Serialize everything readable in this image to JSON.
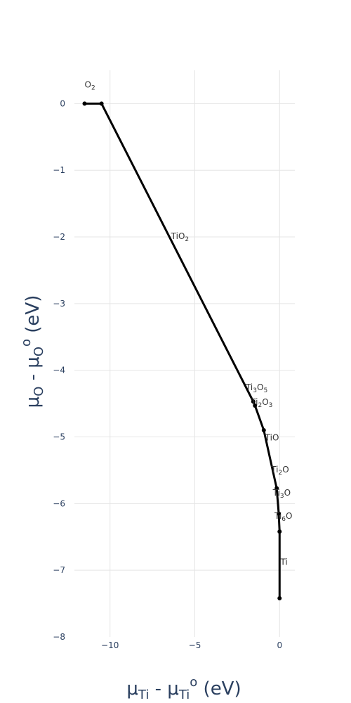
{
  "chart_data": {
    "type": "line",
    "xlabel": {
      "base": "μ",
      "base_sub": "Ti",
      "mid": " - μ",
      "mid_sub": "Ti",
      "sup": "o",
      "end": " (eV)"
    },
    "ylabel": {
      "base": "μ",
      "base_sub": "O",
      "mid": " - μ",
      "mid_sub": "O",
      "sup": "o",
      "end": " (eV)"
    },
    "xlim": [
      -12.1,
      0.9
    ],
    "ylim": [
      -8,
      0.5
    ],
    "x_ticks": [
      -10,
      -5,
      0
    ],
    "x_tick_labels": [
      "−10",
      "−5",
      "0"
    ],
    "y_ticks": [
      0,
      -1,
      -2,
      -3,
      -4,
      -5,
      -6,
      -7,
      -8
    ],
    "y_tick_labels": [
      "0",
      "−1",
      "−2",
      "−3",
      "−4",
      "−5",
      "−6",
      "−7",
      "−8"
    ],
    "grid": true,
    "series": [
      {
        "x": [
          -11.5,
          -10.5,
          -1.55,
          -1.45,
          -0.93,
          -0.17,
          -0.05,
          0.0,
          0.0
        ],
        "y": [
          0.0,
          0.0,
          -4.47,
          -4.53,
          -4.9,
          -5.77,
          -6.15,
          -6.42,
          -7.42
        ]
      }
    ],
    "phase_labels": [
      {
        "base": "O",
        "sub": "2",
        "x": -11.5,
        "y": 0.24
      },
      {
        "base": "TiO",
        "sub": "2",
        "x": -6.4,
        "y": -2.03
      },
      {
        "base": "Ti",
        "sub": "3",
        "rest": "O",
        "sub2": "5",
        "x": -2.0,
        "y": -4.3
      },
      {
        "base": "Ti",
        "sub": "2",
        "rest": "O",
        "sub2": "3",
        "x": -1.7,
        "y": -4.52
      },
      {
        "base": "TiO",
        "x": -0.85,
        "y": -5.05
      },
      {
        "base": "Ti",
        "sub": "2",
        "rest": "O",
        "x": -0.5,
        "y": -5.53
      },
      {
        "base": "Ti",
        "sub": "3",
        "rest": "O",
        "x": -0.4,
        "y": -5.88
      },
      {
        "base": "Ti",
        "sub": "6",
        "rest": "O",
        "x": -0.3,
        "y": -6.23
      },
      {
        "base": "Ti",
        "x": 0.05,
        "y": -6.92
      }
    ]
  }
}
